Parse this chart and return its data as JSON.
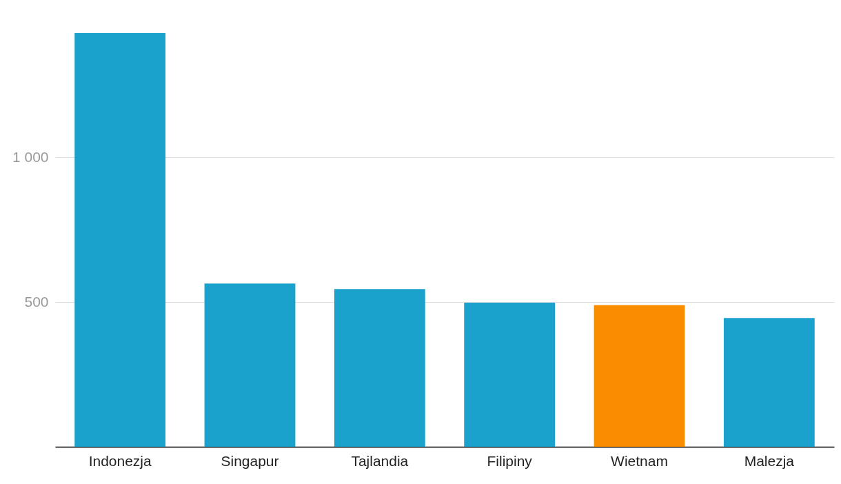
{
  "chart_data": {
    "type": "bar",
    "categories": [
      "Indonezja",
      "Singapur",
      "Tajlandia",
      "Filipiny",
      "Wietnam",
      "Malezja"
    ],
    "values": [
      1430,
      564,
      545,
      498,
      490,
      445
    ],
    "colors": [
      "#1aa1cc",
      "#1aa1cc",
      "#1aa1cc",
      "#1aa1cc",
      "#f98c00",
      "#1aa1cc"
    ],
    "ylim": [
      0,
      1430
    ],
    "yticks": [
      500,
      {
        "value": 1000,
        "label": "1 000"
      }
    ],
    "grid": "y"
  }
}
